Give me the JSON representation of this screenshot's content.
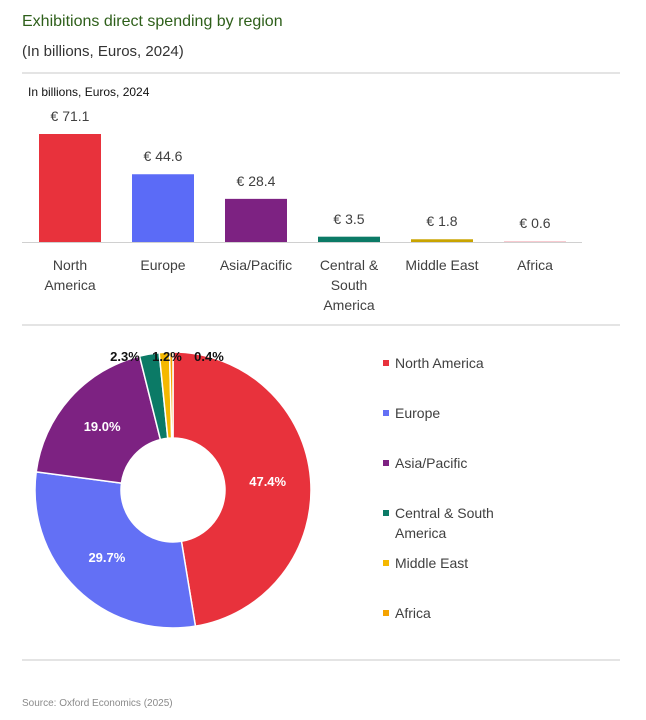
{
  "title": "Exhibitions direct spending by region",
  "subtitle": "(In billions, Euros, 2024)",
  "source": "Source: Oxford Economics (2025)",
  "chart_data": [
    {
      "type": "bar",
      "subtitle": "In billions, Euros, 2024",
      "categories": [
        "North America",
        "Europe",
        "Asia/Pacific",
        "Central & South America",
        "Middle East",
        "Africa"
      ],
      "values": [
        71.1,
        44.6,
        28.4,
        3.5,
        1.8,
        0.6
      ],
      "value_labels": [
        "€ 71.1",
        "€ 44.6",
        "€ 28.4",
        "€ 3.5",
        "€ 1.8",
        "€ 0.6"
      ],
      "colors": [
        "#e8323c",
        "#5b6bf7",
        "#7d2282",
        "#0b7a66",
        "#c9a400",
        "#f7c6cc"
      ]
    },
    {
      "type": "pie",
      "categories": [
        "North America",
        "Europe",
        "Asia/Pacific",
        "Central & South America",
        "Middle East",
        "Africa"
      ],
      "values": [
        47.4,
        29.7,
        19.0,
        2.3,
        1.2,
        0.4
      ],
      "value_labels": [
        "47.4%",
        "29.7%",
        "19.0%",
        "2.3%",
        "1.2%",
        "0.4%"
      ],
      "colors": [
        "#e8323c",
        "#6370f5",
        "#7d2282",
        "#0b7a66",
        "#f5b800",
        "#f5a300"
      ]
    }
  ]
}
